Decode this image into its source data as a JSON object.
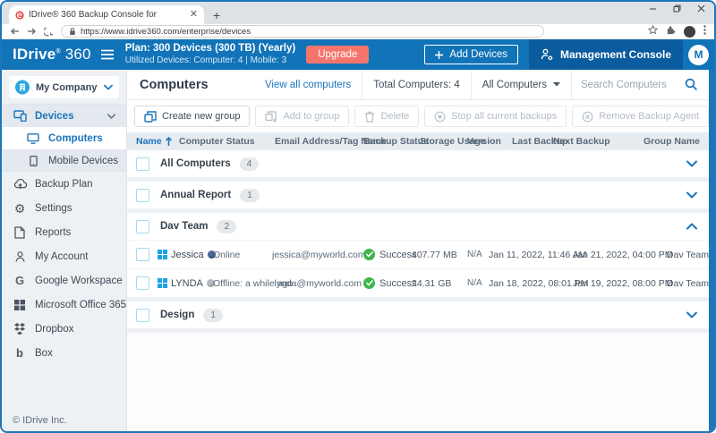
{
  "colors": {
    "accent_blue": "#1b75bc",
    "header_blue": "#1173b8",
    "management_console_blue": "#0b5c9e",
    "upgrade_salmon": "#f5756c",
    "success_green": "#3fb54d",
    "windows_logo_blue": "#1ba3e4"
  },
  "browser": {
    "tab_title": "IDrive® 360 Backup Console for",
    "url": "https://www.idrive360.com/enterprise/devices"
  },
  "header": {
    "logo_main": "IDrive",
    "logo_reg": "®",
    "logo_suffix": "360",
    "plan_line1": "Plan: 300 Devices (300 TB) (Yearly)",
    "plan_line2": "Utilized Devices: Computer: 4 |  Mobile: 3",
    "upgrade_label": "Upgrade",
    "add_devices_label": "Add Devices",
    "management_console_label": "Management Console",
    "avatar_initial": "M"
  },
  "sidebar": {
    "company_label": "My Company",
    "items": [
      {
        "label": "Devices",
        "icon": "devices-icon",
        "type": "section",
        "active": true,
        "chevron": "down"
      },
      {
        "label": "Computers",
        "icon": "computer-icon",
        "type": "child",
        "active": true
      },
      {
        "label": "Mobile Devices",
        "icon": "mobile-icon",
        "type": "child",
        "active": false
      },
      {
        "label": "Backup Plan",
        "icon": "backup-icon",
        "type": "plain"
      },
      {
        "label": "Settings",
        "icon": "settings-icon",
        "type": "plain"
      },
      {
        "label": "Reports",
        "icon": "reports-icon",
        "type": "plain"
      },
      {
        "label": "My Account",
        "icon": "account-icon",
        "type": "plain"
      },
      {
        "label": "Google Workspace",
        "icon": "google-icon",
        "type": "plain"
      },
      {
        "label": "Microsoft Office 365",
        "icon": "office-icon",
        "type": "plain"
      },
      {
        "label": "Dropbox",
        "icon": "dropbox-icon",
        "type": "plain"
      },
      {
        "label": "Box",
        "icon": "box-icon",
        "type": "plain"
      }
    ],
    "footer": "© IDrive Inc."
  },
  "main": {
    "title": "Computers",
    "view_all_label": "View all computers",
    "total_label": "Total Computers: 4",
    "group_filter_label": "All Computers",
    "search_placeholder": "Search Computers",
    "toolbar": [
      {
        "label": "Create new group",
        "icon": "new-group-icon",
        "enabled": true
      },
      {
        "label": "Add to group",
        "icon": "add-to-group-icon",
        "enabled": false
      },
      {
        "label": "Delete",
        "icon": "delete-icon",
        "enabled": false
      },
      {
        "label": "Stop all current backups",
        "icon": "stop-icon",
        "enabled": false
      },
      {
        "label": "Remove Backup Agent",
        "icon": "remove-agent-icon",
        "enabled": false
      },
      {
        "label": "•••",
        "icon": "more-icon",
        "enabled": true
      }
    ],
    "table": {
      "columns": [
        "Name",
        "Computer Status",
        "Email Address/Tag Name",
        "Backup Status",
        "Storage Usage",
        "Version",
        "Last Backup",
        "Next Backup",
        "Group Name"
      ],
      "groups": [
        {
          "name": "All Computers",
          "count": "4",
          "expanded": false,
          "devices": []
        },
        {
          "name": "Annual Report",
          "count": "1",
          "expanded": false,
          "devices": []
        },
        {
          "name": "Dav Team",
          "count": "2",
          "expanded": true,
          "devices": [
            {
              "name": "Jessica",
              "online": true,
              "status": "Online",
              "email": "jessica@myworld.com",
              "backup_status": "Success",
              "storage": "407.77 MB",
              "version": "N/A",
              "last_backup": "Jan 11, 2022, 11:46 AM",
              "next_backup": "Jan 21, 2022, 04:00 PM",
              "group": "Dav Team"
            },
            {
              "name": "LYNDA",
              "online": false,
              "status": "Offline: a while ago",
              "email": "lynda@myworld.com",
              "backup_status": "Success",
              "storage": "24.31 GB",
              "version": "N/A",
              "last_backup": "Jan 18, 2022, 08:01 PM",
              "next_backup": "Jan 19, 2022, 08:00 PM",
              "group": "Dav Team"
            }
          ]
        },
        {
          "name": "Design",
          "count": "1",
          "expanded": false,
          "devices": []
        }
      ]
    }
  }
}
